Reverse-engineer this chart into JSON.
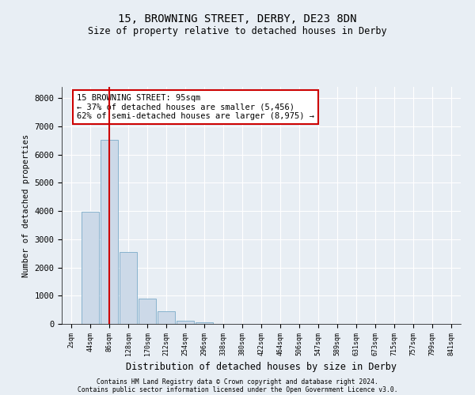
{
  "title_line1": "15, BROWNING STREET, DERBY, DE23 8DN",
  "title_line2": "Size of property relative to detached houses in Derby",
  "xlabel": "Distribution of detached houses by size in Derby",
  "ylabel": "Number of detached properties",
  "bar_color": "#ccd9e8",
  "bar_edge_color": "#7aaac8",
  "annotation_box_color": "#cc0000",
  "vline_color": "#cc0000",
  "categories": [
    "2sqm",
    "44sqm",
    "86sqm",
    "128sqm",
    "170sqm",
    "212sqm",
    "254sqm",
    "296sqm",
    "338sqm",
    "380sqm",
    "422sqm",
    "464sqm",
    "506sqm",
    "547sqm",
    "589sqm",
    "631sqm",
    "673sqm",
    "715sqm",
    "757sqm",
    "799sqm",
    "841sqm"
  ],
  "values": [
    0,
    3980,
    6520,
    2560,
    900,
    460,
    120,
    50,
    0,
    0,
    0,
    0,
    0,
    0,
    0,
    0,
    0,
    0,
    0,
    0,
    0
  ],
  "ylim": [
    0,
    8400
  ],
  "yticks": [
    0,
    1000,
    2000,
    3000,
    4000,
    5000,
    6000,
    7000,
    8000
  ],
  "vline_position": 2.0,
  "annotation_text": "15 BROWNING STREET: 95sqm\n← 37% of detached houses are smaller (5,456)\n62% of semi-detached houses are larger (8,975) →",
  "footer_line1": "Contains HM Land Registry data © Crown copyright and database right 2024.",
  "footer_line2": "Contains public sector information licensed under the Open Government Licence v3.0.",
  "background_color": "#e8eef4",
  "plot_bg_color": "#e8eef4",
  "grid_color": "#ffffff"
}
